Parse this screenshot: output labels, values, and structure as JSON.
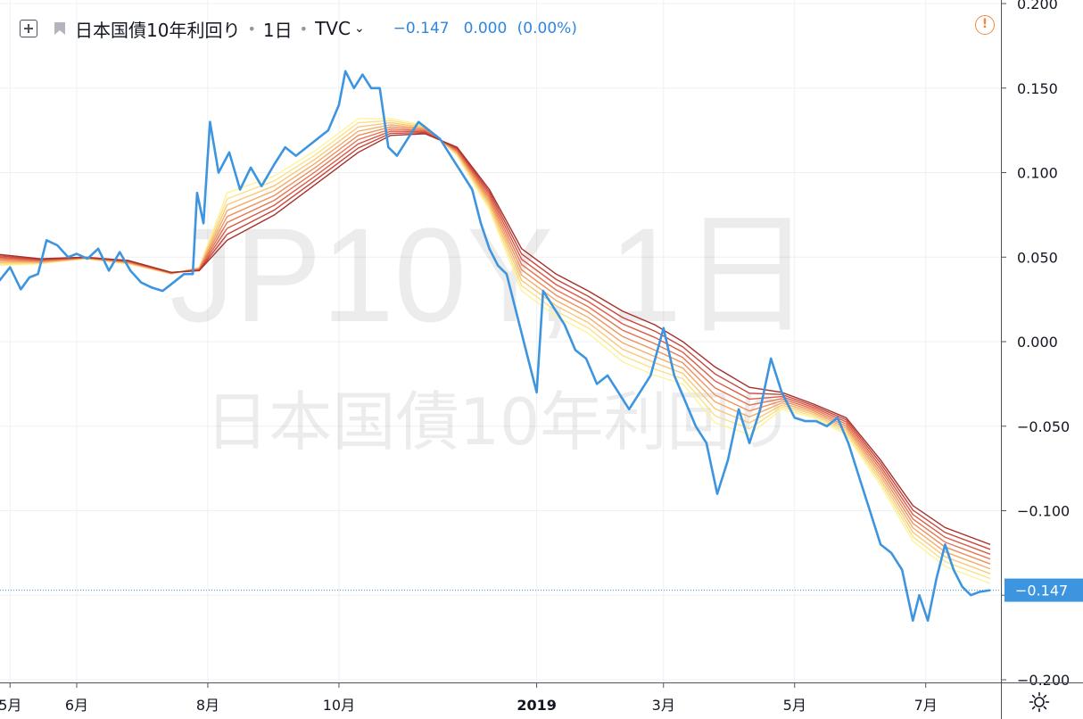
{
  "legend": {
    "symbol_title": "日本国債10年利回り",
    "interval": "1日",
    "exchange": "TVC",
    "last_value": "−0.147",
    "change": "0.000 (0.00%)"
  },
  "watermark": {
    "line1": "JP10Y, 1日",
    "line2": "日本国債10年利回り"
  },
  "last_price_label": "−0.147",
  "icons": {
    "add": "plus-square-icon",
    "flag": "flag-icon",
    "alert": "exclamation-circle-icon",
    "settings": "gear-icon"
  },
  "colors": {
    "price_line": "#3d95e0",
    "price_label_bg": "#3d95e0",
    "ribbon": [
      "#fdf39a",
      "#fbe089",
      "#f8c878",
      "#f4ac68",
      "#ee905c",
      "#e67552",
      "#d95b47",
      "#c8453b",
      "#a5302b"
    ]
  },
  "chart_data": {
    "type": "line",
    "title": "日本国債10年利回り",
    "interval": "1日",
    "exchange": "TVC",
    "ylim": [
      -0.2,
      0.2
    ],
    "y_ticks": [
      "0.200",
      "0.150",
      "0.100",
      "0.050",
      "0.000",
      "−0.050",
      "−0.100",
      "−0.150",
      "−0.200"
    ],
    "y_tick_values": [
      0.2,
      0.15,
      0.1,
      0.05,
      0.0,
      -0.05,
      -0.1,
      -0.15,
      -0.2
    ],
    "x_range": [
      "2018-04-23",
      "2019-07-31"
    ],
    "x_ticks": [
      {
        "label": "5月",
        "date": "2018-05-01"
      },
      {
        "label": "6月",
        "date": "2018-06-01"
      },
      {
        "label": "8月",
        "date": "2018-08-01"
      },
      {
        "label": "10月",
        "date": "2018-10-01"
      },
      {
        "label": "2019",
        "date": "2019-01-01",
        "bold": true
      },
      {
        "label": "3月",
        "date": "2019-03-01"
      },
      {
        "label": "5月",
        "date": "2019-05-01"
      },
      {
        "label": "7月",
        "date": "2019-07-01"
      }
    ],
    "grid": true,
    "last_value": -0.147,
    "series": [
      {
        "role": "price",
        "points": [
          [
            "2018-04-23",
            0.044
          ],
          [
            "2018-04-26",
            0.036
          ],
          [
            "2018-05-01",
            0.044
          ],
          [
            "2018-05-06",
            0.031
          ],
          [
            "2018-05-10",
            0.038
          ],
          [
            "2018-05-14",
            0.04
          ],
          [
            "2018-05-18",
            0.06
          ],
          [
            "2018-05-23",
            0.057
          ],
          [
            "2018-05-28",
            0.05
          ],
          [
            "2018-06-01",
            0.052
          ],
          [
            "2018-06-06",
            0.049
          ],
          [
            "2018-06-11",
            0.055
          ],
          [
            "2018-06-16",
            0.042
          ],
          [
            "2018-06-21",
            0.053
          ],
          [
            "2018-06-26",
            0.042
          ],
          [
            "2018-07-01",
            0.035
          ],
          [
            "2018-07-06",
            0.032
          ],
          [
            "2018-07-11",
            0.03
          ],
          [
            "2018-07-16",
            0.035
          ],
          [
            "2018-07-21",
            0.04
          ],
          [
            "2018-07-25",
            0.04
          ],
          [
            "2018-07-27",
            0.088
          ],
          [
            "2018-07-30",
            0.07
          ],
          [
            "2018-08-01",
            0.11
          ],
          [
            "2018-08-02",
            0.13
          ],
          [
            "2018-08-06",
            0.1
          ],
          [
            "2018-08-11",
            0.112
          ],
          [
            "2018-08-16",
            0.09
          ],
          [
            "2018-08-21",
            0.103
          ],
          [
            "2018-08-26",
            0.092
          ],
          [
            "2018-09-01",
            0.105
          ],
          [
            "2018-09-06",
            0.115
          ],
          [
            "2018-09-11",
            0.11
          ],
          [
            "2018-09-16",
            0.115
          ],
          [
            "2018-09-21",
            0.12
          ],
          [
            "2018-09-26",
            0.125
          ],
          [
            "2018-10-01",
            0.14
          ],
          [
            "2018-10-04",
            0.16
          ],
          [
            "2018-10-08",
            0.15
          ],
          [
            "2018-10-12",
            0.158
          ],
          [
            "2018-10-16",
            0.15
          ],
          [
            "2018-10-20",
            0.15
          ],
          [
            "2018-10-24",
            0.115
          ],
          [
            "2018-10-28",
            0.11
          ],
          [
            "2018-11-02",
            0.12
          ],
          [
            "2018-11-07",
            0.13
          ],
          [
            "2018-11-12",
            0.125
          ],
          [
            "2018-11-17",
            0.12
          ],
          [
            "2018-11-22",
            0.11
          ],
          [
            "2018-11-27",
            0.1
          ],
          [
            "2018-12-02",
            0.09
          ],
          [
            "2018-12-06",
            0.07
          ],
          [
            "2018-12-10",
            0.055
          ],
          [
            "2018-12-14",
            0.045
          ],
          [
            "2018-12-18",
            0.04
          ],
          [
            "2018-12-22",
            0.02
          ],
          [
            "2018-12-26",
            0.0
          ],
          [
            "2019-01-01",
            -0.03
          ],
          [
            "2019-01-04",
            0.03
          ],
          [
            "2019-01-09",
            0.02
          ],
          [
            "2019-01-14",
            0.01
          ],
          [
            "2019-01-19",
            -0.005
          ],
          [
            "2019-01-24",
            -0.01
          ],
          [
            "2019-01-29",
            -0.025
          ],
          [
            "2019-02-03",
            -0.02
          ],
          [
            "2019-02-08",
            -0.03
          ],
          [
            "2019-02-13",
            -0.04
          ],
          [
            "2019-02-18",
            -0.03
          ],
          [
            "2019-02-23",
            -0.02
          ],
          [
            "2019-03-01",
            0.008
          ],
          [
            "2019-03-06",
            -0.02
          ],
          [
            "2019-03-11",
            -0.035
          ],
          [
            "2019-03-16",
            -0.05
          ],
          [
            "2019-03-21",
            -0.06
          ],
          [
            "2019-03-26",
            -0.09
          ],
          [
            "2019-03-31",
            -0.07
          ],
          [
            "2019-04-05",
            -0.04
          ],
          [
            "2019-04-10",
            -0.06
          ],
          [
            "2019-04-15",
            -0.04
          ],
          [
            "2019-04-20",
            -0.01
          ],
          [
            "2019-04-25",
            -0.03
          ],
          [
            "2019-05-01",
            -0.045
          ],
          [
            "2019-05-06",
            -0.047
          ],
          [
            "2019-05-11",
            -0.047
          ],
          [
            "2019-05-16",
            -0.05
          ],
          [
            "2019-05-21",
            -0.045
          ],
          [
            "2019-05-26",
            -0.06
          ],
          [
            "2019-05-31",
            -0.08
          ],
          [
            "2019-06-05",
            -0.1
          ],
          [
            "2019-06-10",
            -0.12
          ],
          [
            "2019-06-15",
            -0.125
          ],
          [
            "2019-06-20",
            -0.135
          ],
          [
            "2019-06-25",
            -0.165
          ],
          [
            "2019-06-28",
            -0.15
          ],
          [
            "2019-07-02",
            -0.165
          ],
          [
            "2019-07-06",
            -0.14
          ],
          [
            "2019-07-10",
            -0.12
          ],
          [
            "2019-07-14",
            -0.135
          ],
          [
            "2019-07-18",
            -0.145
          ],
          [
            "2019-07-22",
            -0.15
          ],
          [
            "2019-07-26",
            -0.148
          ],
          [
            "2019-07-31",
            -0.147
          ]
        ]
      },
      {
        "role": "ma-fast",
        "points": [
          [
            "2018-04-23",
            0.045
          ],
          [
            "2018-05-15",
            0.046
          ],
          [
            "2018-06-05",
            0.049
          ],
          [
            "2018-06-25",
            0.046
          ],
          [
            "2018-07-15",
            0.04
          ],
          [
            "2018-07-28",
            0.044
          ],
          [
            "2018-08-10",
            0.088
          ],
          [
            "2018-09-01",
            0.098
          ],
          [
            "2018-09-20",
            0.113
          ],
          [
            "2018-10-10",
            0.132
          ],
          [
            "2018-10-25",
            0.132
          ],
          [
            "2018-11-10",
            0.128
          ],
          [
            "2018-11-25",
            0.11
          ],
          [
            "2018-12-10",
            0.078
          ],
          [
            "2018-12-25",
            0.03
          ],
          [
            "2019-01-10",
            0.015
          ],
          [
            "2019-01-25",
            0.005
          ],
          [
            "2019-02-10",
            -0.012
          ],
          [
            "2019-02-25",
            -0.02
          ],
          [
            "2019-03-10",
            -0.025
          ],
          [
            "2019-03-25",
            -0.048
          ],
          [
            "2019-04-10",
            -0.055
          ],
          [
            "2019-04-25",
            -0.04
          ],
          [
            "2019-05-10",
            -0.045
          ],
          [
            "2019-05-25",
            -0.055
          ],
          [
            "2019-06-10",
            -0.085
          ],
          [
            "2019-06-25",
            -0.118
          ],
          [
            "2019-07-10",
            -0.133
          ],
          [
            "2019-07-31",
            -0.143
          ]
        ]
      },
      {
        "role": "ma-slow",
        "points": [
          [
            "2018-04-23",
            0.052
          ],
          [
            "2018-05-15",
            0.049
          ],
          [
            "2018-06-05",
            0.05
          ],
          [
            "2018-06-25",
            0.048
          ],
          [
            "2018-07-15",
            0.041
          ],
          [
            "2018-07-28",
            0.042
          ],
          [
            "2018-08-10",
            0.06
          ],
          [
            "2018-09-01",
            0.075
          ],
          [
            "2018-09-20",
            0.093
          ],
          [
            "2018-10-10",
            0.112
          ],
          [
            "2018-10-25",
            0.122
          ],
          [
            "2018-11-10",
            0.123
          ],
          [
            "2018-11-25",
            0.115
          ],
          [
            "2018-12-10",
            0.09
          ],
          [
            "2018-12-25",
            0.055
          ],
          [
            "2019-01-10",
            0.04
          ],
          [
            "2019-01-25",
            0.03
          ],
          [
            "2019-02-10",
            0.018
          ],
          [
            "2019-02-25",
            0.01
          ],
          [
            "2019-03-10",
            0.0
          ],
          [
            "2019-03-25",
            -0.015
          ],
          [
            "2019-04-10",
            -0.027
          ],
          [
            "2019-04-25",
            -0.03
          ],
          [
            "2019-05-10",
            -0.037
          ],
          [
            "2019-05-25",
            -0.045
          ],
          [
            "2019-06-10",
            -0.07
          ],
          [
            "2019-06-25",
            -0.097
          ],
          [
            "2019-07-10",
            -0.11
          ],
          [
            "2019-07-31",
            -0.12
          ]
        ]
      }
    ]
  }
}
